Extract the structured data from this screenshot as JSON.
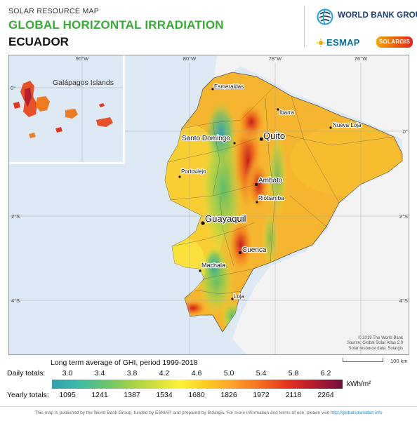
{
  "header": {
    "subtitle": "SOLAR RESOURCE MAP",
    "title": "GLOBAL HORIZONTAL IRRADIATION",
    "country": "ECUADOR",
    "logos": {
      "world_bank": "WORLD BANK GROUP",
      "esmap": "ESMAP",
      "solargis": "SOLARGIS"
    }
  },
  "map": {
    "inset_label": "Galápagos Islands",
    "inset_ticks": {
      "lon": "90°W",
      "lat": "0°"
    },
    "lon_ticks": [
      "80°W",
      "78°W",
      "76°W"
    ],
    "lat_ticks": [
      "0°",
      "2°S",
      "4°S"
    ],
    "cities": [
      {
        "name": "Esmeraldas",
        "size": "small"
      },
      {
        "name": "Ibarra",
        "size": "small"
      },
      {
        "name": "Quito",
        "size": "large"
      },
      {
        "name": "Nueva Loja",
        "size": "small"
      },
      {
        "name": "Santo Domingo",
        "size": "medium"
      },
      {
        "name": "Portoviejo",
        "size": "small"
      },
      {
        "name": "Ambato",
        "size": "medium"
      },
      {
        "name": "Riobamba",
        "size": "small"
      },
      {
        "name": "Guayaquil",
        "size": "large"
      },
      {
        "name": "Cuenca",
        "size": "medium"
      },
      {
        "name": "Machala",
        "size": "small"
      },
      {
        "name": "Loja",
        "size": "small"
      }
    ],
    "copyright": [
      "© 2019 The World Bank",
      "Source: Global Solar Atlas 2.0",
      "Solar resource data: Solargis"
    ],
    "colors": {
      "sea": "#dde9f5",
      "neighbor": "#f3f3f3",
      "lowlands": "#f6b52e",
      "coast_mid": "#f9d234",
      "highland_high": "#d72a22"
    }
  },
  "legend": {
    "title": "Long term average of GHI, period 1999-2018",
    "daily_label": "Daily totals:",
    "yearly_label": "Yearly totals:",
    "daily_values": [
      "3.0",
      "3.4",
      "3.8",
      "4.2",
      "4.6",
      "5.0",
      "5.4",
      "5.8",
      "6.2"
    ],
    "yearly_values": [
      "1095",
      "1241",
      "1387",
      "1534",
      "1680",
      "1826",
      "1972",
      "2118",
      "2264"
    ],
    "units": "kWh/m²",
    "scale": "100 km"
  },
  "footer": {
    "text": "This map is published by the World Bank Group, funded by ESMAP, and prepared by Solargis. For more information and terms of use, please visit",
    "link": "http://globalsolaratlas.info"
  }
}
